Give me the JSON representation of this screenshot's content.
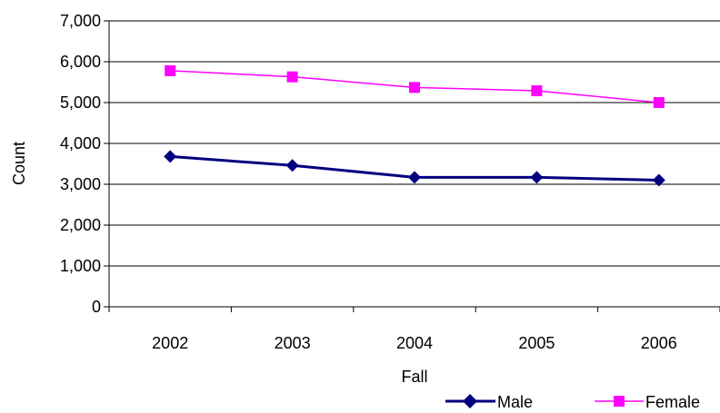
{
  "chart_data": {
    "type": "line",
    "title": "",
    "xlabel": "Fall",
    "ylabel": "Count",
    "categories": [
      "2002",
      "2003",
      "2004",
      "2005",
      "2006"
    ],
    "ylim": [
      0,
      7000
    ],
    "ytick_labels": [
      "0",
      "1,000",
      "2,000",
      "3,000",
      "4,000",
      "5,000",
      "6,000",
      "7,000"
    ],
    "grid": "horizontal",
    "legend_position": "bottom-right",
    "series": [
      {
        "name": "Male",
        "values": [
          3680,
          3460,
          3170,
          3170,
          3100
        ],
        "color": "#000080",
        "marker": "diamond"
      },
      {
        "name": "Female",
        "values": [
          5780,
          5630,
          5370,
          5290,
          5000
        ],
        "color": "#FF00FF",
        "marker": "square"
      }
    ]
  }
}
